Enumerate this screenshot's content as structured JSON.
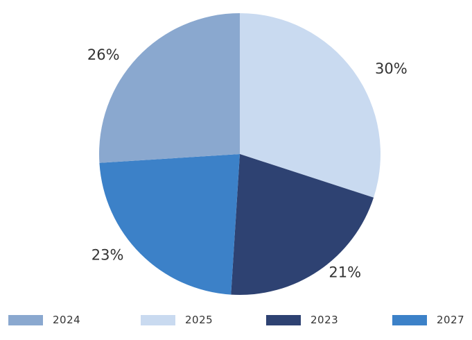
{
  "chart_data": {
    "type": "pie",
    "slices": [
      {
        "label": "2025",
        "value": 30,
        "display": "30%",
        "color": "#c9daf0"
      },
      {
        "label": "2023",
        "value": 21,
        "display": "21%",
        "color": "#2e4272"
      },
      {
        "label": "2027",
        "value": 23,
        "display": "23%",
        "color": "#3c81c8"
      },
      {
        "label": "2024",
        "value": 26,
        "display": "26%",
        "color": "#8aa8cf"
      }
    ],
    "legend": {
      "placement": "bottom",
      "order": [
        "2024",
        "2025",
        "2023",
        "2027"
      ]
    }
  }
}
